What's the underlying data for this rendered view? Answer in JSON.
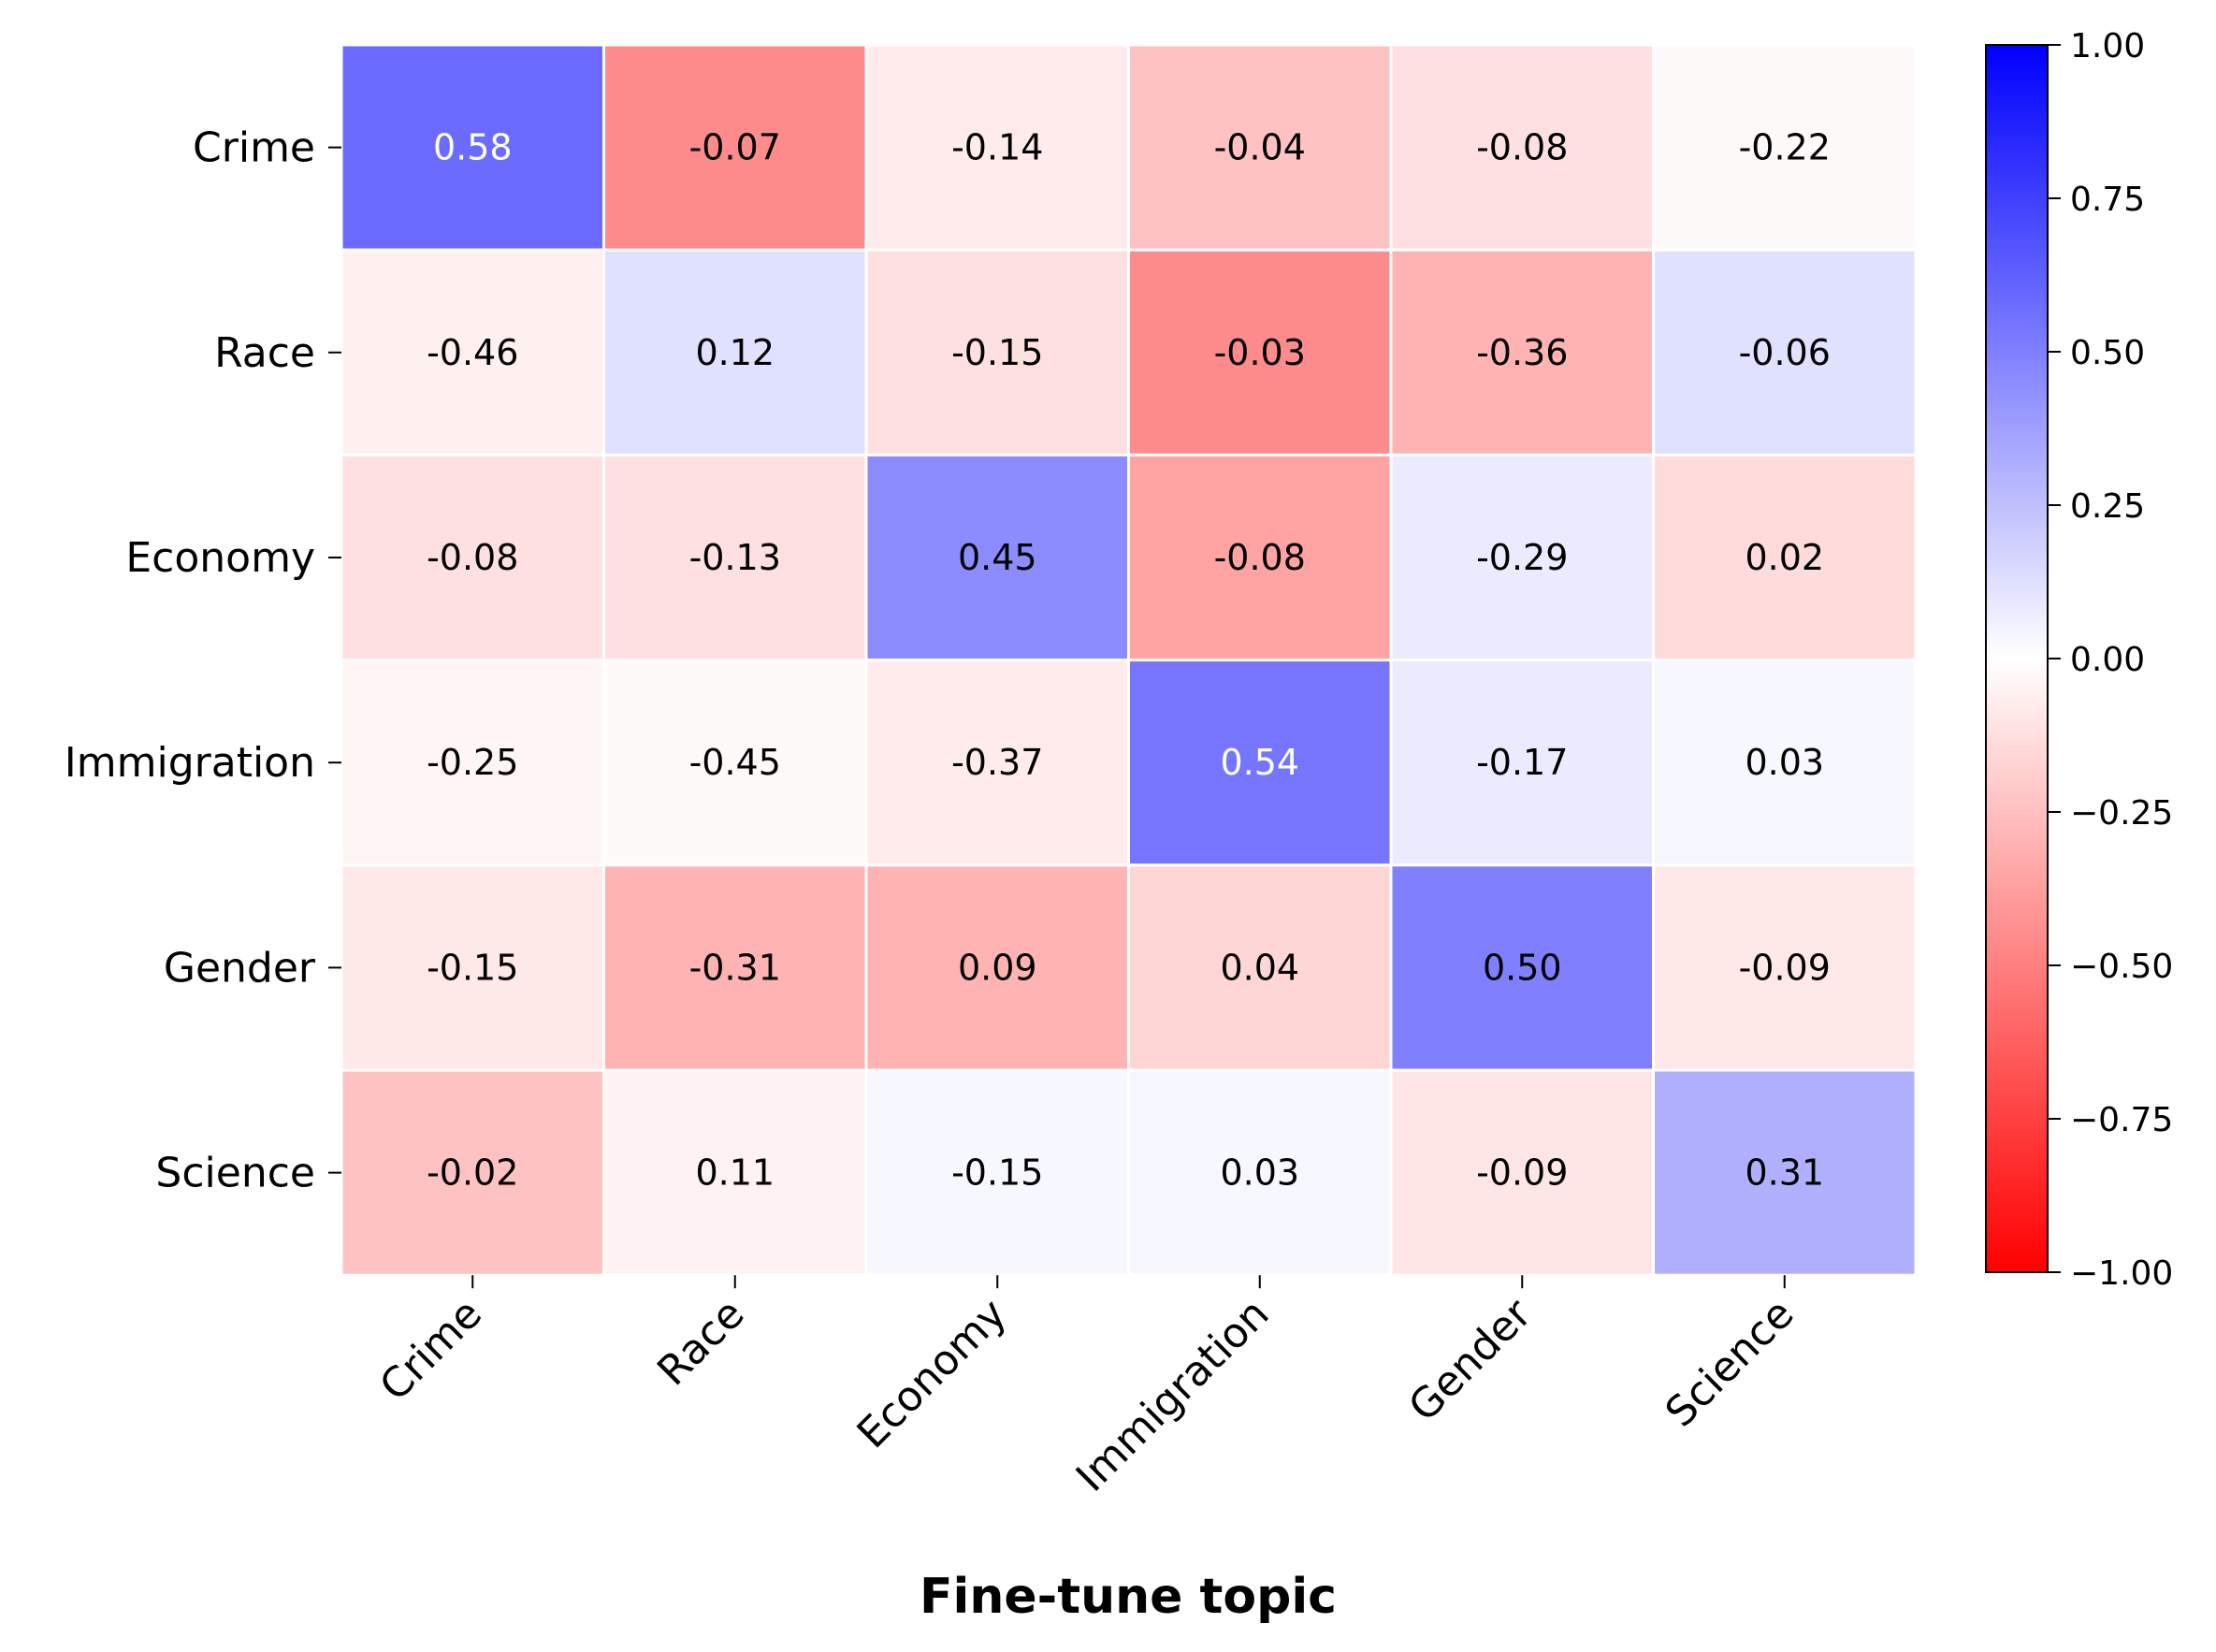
{
  "chart_data": {
    "type": "heatmap",
    "title": "",
    "xlabel": "Fine-tune topic",
    "ylabel": "",
    "x_categories": [
      "Crime",
      "Race",
      "Economy",
      "Immigration",
      "Gender",
      "Science"
    ],
    "y_categories": [
      "Crime",
      "Race",
      "Economy",
      "Immigration",
      "Gender",
      "Science"
    ],
    "values": [
      [
        0.58,
        -0.07,
        -0.14,
        -0.04,
        -0.08,
        -0.22
      ],
      [
        -0.46,
        0.12,
        -0.15,
        -0.03,
        -0.36,
        -0.06
      ],
      [
        -0.08,
        -0.13,
        0.45,
        -0.08,
        -0.29,
        0.02
      ],
      [
        -0.25,
        -0.45,
        -0.37,
        0.54,
        -0.17,
        0.03
      ],
      [
        -0.15,
        -0.31,
        0.09,
        0.04,
        0.5,
        -0.09
      ],
      [
        -0.02,
        0.11,
        -0.15,
        0.03,
        -0.09,
        0.31
      ]
    ],
    "cell_shading": [
      [
        0.58,
        -0.45,
        -0.08,
        -0.24,
        -0.12,
        -0.02
      ],
      [
        -0.06,
        0.12,
        -0.12,
        -0.45,
        -0.3,
        0.12
      ],
      [
        -0.12,
        -0.12,
        0.45,
        -0.36,
        0.08,
        -0.14
      ],
      [
        -0.04,
        -0.02,
        -0.08,
        0.54,
        0.08,
        0.03
      ],
      [
        -0.09,
        -0.3,
        -0.3,
        -0.16,
        0.5,
        -0.09
      ],
      [
        -0.24,
        -0.05,
        0.03,
        0.03,
        -0.1,
        0.31
      ]
    ],
    "colormap": "bwr_r",
    "colorbar": {
      "range": [
        -1.0,
        1.0
      ],
      "ticks": [
        1.0,
        0.75,
        0.5,
        0.25,
        0.0,
        -0.25,
        -0.5,
        -0.75,
        -1.0
      ],
      "tick_labels": [
        "1.00",
        "0.75",
        "0.50",
        "0.25",
        "0.00",
        "−0.25",
        "−0.50",
        "−0.75",
        "−1.00"
      ]
    },
    "colors": {
      "positive": "#0000ff",
      "zero": "#ffffff",
      "negative": "#ff0000"
    }
  }
}
